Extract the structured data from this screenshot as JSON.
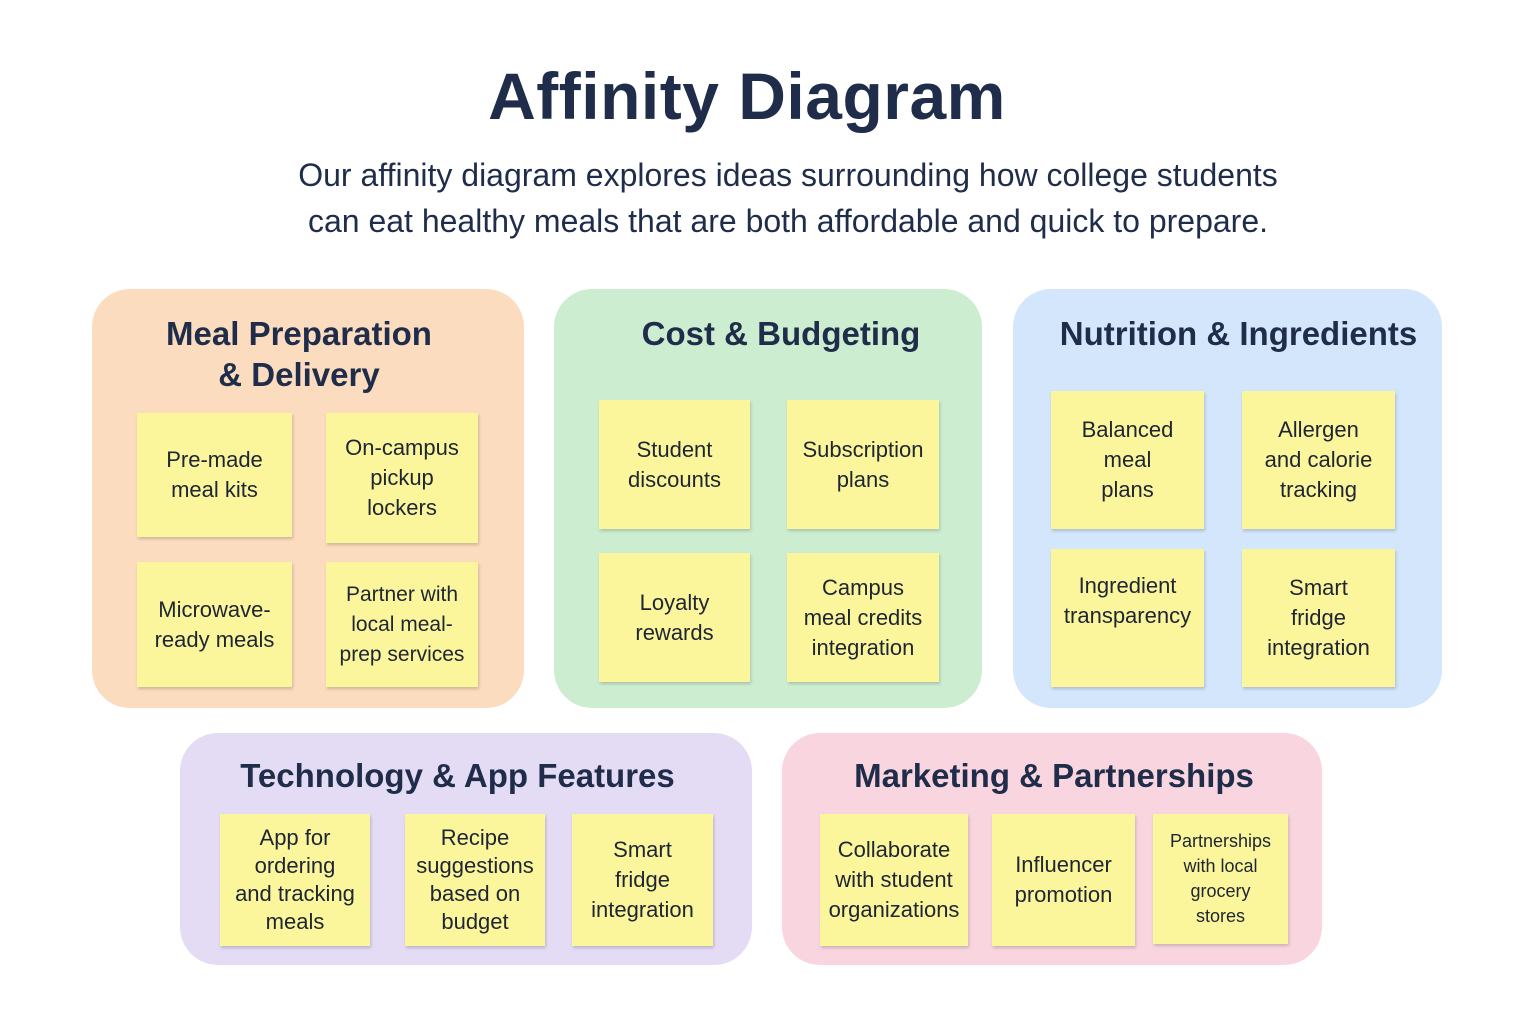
{
  "title": "Affinity Diagram",
  "subtitle": {
    "line1": "Our affinity diagram explores ideas surrounding how college students",
    "line2": "can eat healthy meals that are both affordable and quick to prepare."
  },
  "colors": {
    "note": "#fbf59b",
    "meal_group": "#fbdcbf",
    "cost_group": "#cdedd0",
    "nutrition_group": "#d3e6fb",
    "technology_group": "#e4dcf4",
    "marketing_group": "#f9d6df",
    "text": "#1f2d4a"
  },
  "groups": {
    "meal": {
      "title_line1": "Meal Preparation",
      "title_line2": "& Delivery",
      "notes": [
        {
          "lines": [
            "Pre-made",
            "meal kits"
          ]
        },
        {
          "lines": [
            "On-campus",
            "pickup",
            "lockers"
          ]
        },
        {
          "lines": [
            "Microwave-",
            "ready meals"
          ]
        },
        {
          "lines": [
            "Partner with",
            "local meal-",
            "prep services"
          ]
        }
      ]
    },
    "cost": {
      "title": "Cost & Budgeting",
      "notes": [
        {
          "lines": [
            "Student",
            "discounts"
          ]
        },
        {
          "lines": [
            "Subscription",
            "plans"
          ]
        },
        {
          "lines": [
            "Loyalty",
            "rewards"
          ]
        },
        {
          "lines": [
            "Campus",
            "meal credits",
            "integration"
          ]
        }
      ]
    },
    "nutrition": {
      "title": "Nutrition & Ingredients",
      "notes": [
        {
          "lines": [
            "Balanced",
            "meal",
            "plans"
          ]
        },
        {
          "lines": [
            "Allergen",
            "and calorie",
            "tracking"
          ]
        },
        {
          "lines": [
            "Ingredient",
            "transparency"
          ]
        },
        {
          "lines": [
            "Smart",
            "fridge",
            "integration"
          ]
        }
      ]
    },
    "technology": {
      "title": "Technology & App Features",
      "notes": [
        {
          "lines": [
            "App for",
            "ordering",
            "and tracking",
            "meals"
          ]
        },
        {
          "lines": [
            "Recipe",
            "suggestions",
            "based on",
            "budget"
          ]
        },
        {
          "lines": [
            "Smart",
            "fridge",
            "integration"
          ]
        }
      ]
    },
    "marketing": {
      "title": "Marketing & Partnerships",
      "notes": [
        {
          "lines": [
            "Collaborate",
            "with student",
            "organizations"
          ]
        },
        {
          "lines": [
            "Influencer",
            "promotion"
          ]
        },
        {
          "lines": [
            "Partnerships",
            "with local",
            "grocery",
            "stores"
          ]
        }
      ]
    }
  }
}
